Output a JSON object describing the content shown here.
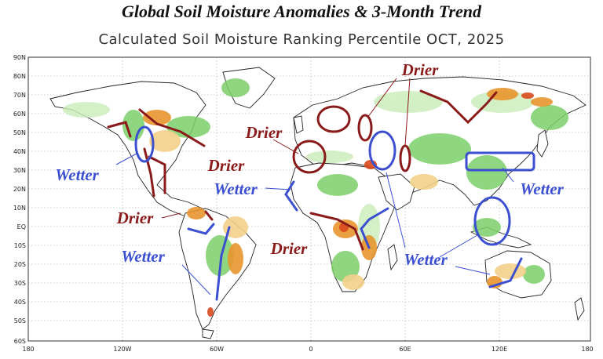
{
  "title": "Global Soil Moisture Anomalies & 3-Month Trend",
  "subtitle": "Calculated Soil Moisture Ranking Percentile OCT, 2025",
  "lat_labels": [
    "90N",
    "80N",
    "70N",
    "60N",
    "50N",
    "40N",
    "30N",
    "20N",
    "10N",
    "EQ",
    "10S",
    "20S",
    "30S",
    "40S",
    "50S",
    "60S"
  ],
  "lon_labels": [
    "180",
    "120W",
    "60W",
    "0",
    "60E",
    "120E",
    "180"
  ],
  "annotations": {
    "drier": [
      "Drier",
      "Drier",
      "Drier",
      "Drier",
      "Drier"
    ],
    "wetter": [
      "Wetter",
      "Wetter",
      "Wetter",
      "Wetter",
      "Wetter"
    ]
  },
  "colors": {
    "drier": "#8b1a1a",
    "wetter": "#3b4fd0",
    "land": "#ffffff",
    "wet_green": "#7ccf6a",
    "light_green": "#c9ecb8",
    "dry_orange": "#e8962e",
    "dry_yellow": "#f3d08a",
    "dry_red": "#d9481c"
  }
}
